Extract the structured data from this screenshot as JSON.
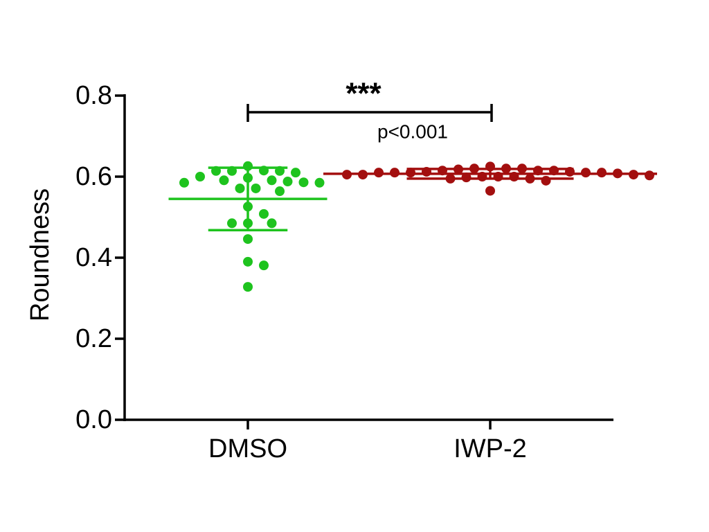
{
  "chart_data": {
    "type": "scatter",
    "y_label": "Roundness",
    "ylim": [
      0,
      0.8
    ],
    "yticks": [
      {
        "value": 0,
        "label": "0.0"
      },
      0.2,
      0.4,
      0.6,
      0.8
    ],
    "groups": [
      {
        "name": "DMSO",
        "color": "#1ec31e",
        "values": [
          0.626,
          0.614,
          0.61,
          0.615,
          0.614,
          0.614,
          0.597,
          0.591,
          0.6,
          0.591,
          0.585,
          0.585,
          0.586,
          0.588,
          0.564,
          0.571,
          0.571,
          0.526,
          0.508,
          0.485,
          0.485,
          0.485,
          0.446,
          0.39,
          0.381,
          0.328
        ],
        "mean": 0.545,
        "sd": 0.077
      },
      {
        "name": "IWP-2",
        "color": "#a30f0f",
        "values": [
          0.62,
          0.615,
          0.61,
          0.61,
          0.605,
          0.6,
          0.615,
          0.62,
          0.61,
          0.605,
          0.6,
          0.595,
          0.59,
          0.612,
          0.618,
          0.608,
          0.603,
          0.598,
          0.615,
          0.61,
          0.605,
          0.62,
          0.625,
          0.612,
          0.6,
          0.595,
          0.565,
          0.61
        ],
        "mean": 0.607,
        "sd": 0.012
      }
    ],
    "significance": "***",
    "p_value": "p<0.001"
  }
}
